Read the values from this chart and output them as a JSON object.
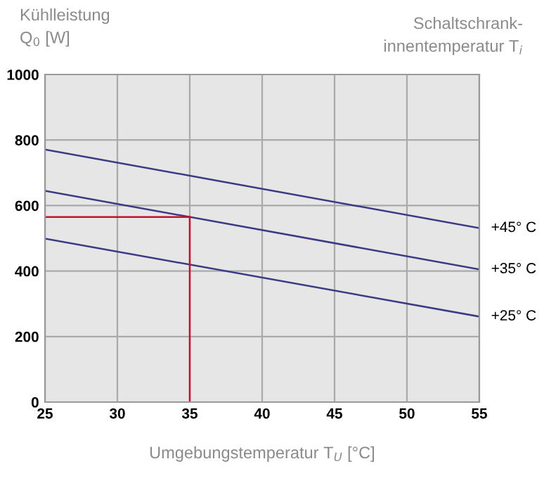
{
  "chart_data": {
    "type": "line",
    "ylabel": "Kühlleistung\nQ$_{0}$ [W]",
    "legend_title": "Schaltschrank-\ninnentemperatur T$_{i}$",
    "xlabel": "Umgebungstemperatur T$_{U}$ [°C]",
    "x": [
      25,
      55
    ],
    "series": [
      {
        "name": "+45° C",
        "color": "#3b3b85",
        "values": [
          771,
          531
        ]
      },
      {
        "name": "+35° C",
        "color": "#3b3b85",
        "values": [
          645,
          405
        ]
      },
      {
        "name": "+25° C",
        "color": "#3b3b85",
        "values": [
          499,
          261
        ]
      }
    ],
    "ref_lines": [
      {
        "axis": "x",
        "value": 35,
        "color": "#c8102e"
      },
      {
        "axis": "y",
        "value": 565,
        "color": "#c8102e"
      }
    ],
    "xlim": [
      25,
      55
    ],
    "ylim": [
      0,
      1000
    ],
    "xticks": [
      25,
      30,
      35,
      40,
      45,
      50,
      55
    ],
    "yticks": [
      0,
      200,
      400,
      600,
      800,
      1000
    ],
    "grid": true,
    "legend": false,
    "marker": "none",
    "line_style": "solid"
  }
}
